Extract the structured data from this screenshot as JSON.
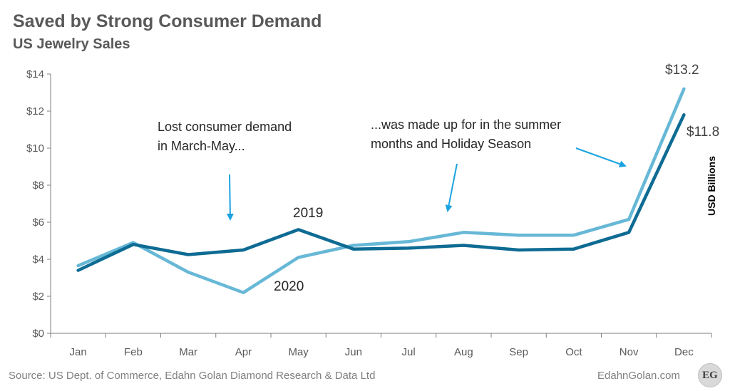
{
  "chart_data": {
    "type": "line",
    "title": "Saved by Strong Consumer Demand",
    "subtitle": "US Jewelry Sales",
    "ylabel": "USD Billions",
    "ylim": [
      0,
      14
    ],
    "yticks": [
      0,
      2,
      4,
      6,
      8,
      10,
      12,
      14
    ],
    "ytick_labels": [
      "$0",
      "$2",
      "$4",
      "$6",
      "$8",
      "$10",
      "$12",
      "$14"
    ],
    "categories": [
      "Jan",
      "Feb",
      "Mar",
      "Apr",
      "May",
      "Jun",
      "Jul",
      "Aug",
      "Sep",
      "Oct",
      "Nov",
      "Dec"
    ],
    "series": [
      {
        "name": "2019",
        "color": "#0e6b93",
        "values": [
          3.4,
          4.8,
          4.25,
          4.5,
          5.6,
          4.55,
          4.6,
          4.75,
          4.5,
          4.55,
          5.45,
          11.8
        ]
      },
      {
        "name": "2020",
        "color": "#67b8d6",
        "values": [
          3.65,
          4.9,
          3.3,
          2.2,
          4.1,
          4.75,
          4.95,
          5.45,
          5.3,
          5.3,
          6.15,
          13.2
        ]
      }
    ],
    "end_labels": {
      "2019": "$11.8",
      "2020": "$13.2"
    },
    "annotations": [
      {
        "lines": [
          "Lost consumer demand",
          "in March-May..."
        ]
      },
      {
        "lines": [
          "...was made up for in the summer",
          "months and Holiday Season"
        ]
      }
    ],
    "grid": false
  },
  "footer": {
    "source": "Source: US Dept. of Commerce, Edahn Golan Diamond Research & Data Ltd",
    "brand": "EdahnGolan.com",
    "logo": "EG"
  },
  "colors": {
    "arrow": "#1aa3e0",
    "axis": "#7f7f7f"
  }
}
